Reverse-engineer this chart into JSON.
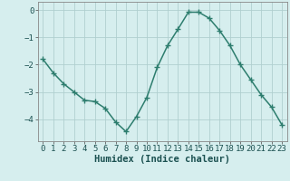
{
  "x": [
    0,
    1,
    2,
    3,
    4,
    5,
    6,
    7,
    8,
    9,
    10,
    11,
    12,
    13,
    14,
    15,
    16,
    17,
    18,
    19,
    20,
    21,
    22,
    23
  ],
  "y": [
    -1.8,
    -2.3,
    -2.7,
    -3.0,
    -3.3,
    -3.35,
    -3.6,
    -4.1,
    -4.45,
    -3.9,
    -3.2,
    -2.1,
    -1.3,
    -0.7,
    -0.08,
    -0.08,
    -0.3,
    -0.75,
    -1.3,
    -2.0,
    -2.55,
    -3.1,
    -3.55,
    -4.2
  ],
  "line_color": "#2d7d6e",
  "marker": "+",
  "marker_size": 4,
  "bg_color": "#d6eeee",
  "grid_color": "#b0cfcf",
  "xlabel": "Humidex (Indice chaleur)",
  "ylim": [
    -4.8,
    0.3
  ],
  "xlim": [
    -0.5,
    23.5
  ],
  "yticks": [
    0,
    -1,
    -2,
    -3,
    -4
  ],
  "xticks": [
    0,
    1,
    2,
    3,
    4,
    5,
    6,
    7,
    8,
    9,
    10,
    11,
    12,
    13,
    14,
    15,
    16,
    17,
    18,
    19,
    20,
    21,
    22,
    23
  ],
  "tick_fontsize": 6.5,
  "xlabel_fontsize": 7.5,
  "line_width": 1.1
}
